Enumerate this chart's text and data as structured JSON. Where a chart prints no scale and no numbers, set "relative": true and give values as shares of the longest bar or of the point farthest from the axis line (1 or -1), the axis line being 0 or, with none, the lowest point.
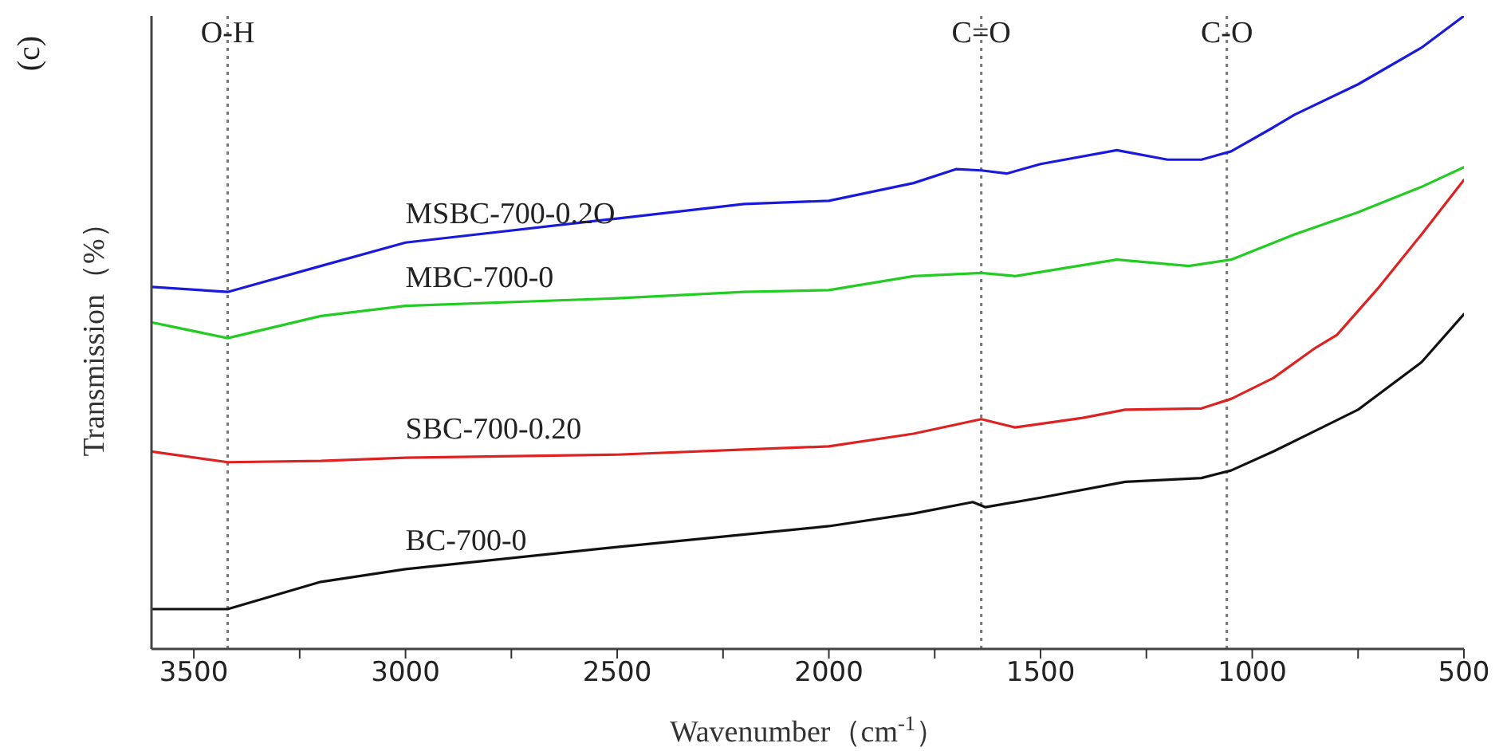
{
  "chart_data": {
    "type": "line",
    "relative": true,
    "xlabel": "Wavenumber（cm$^{-1}$）",
    "ylabel": "Transmission（%）",
    "annotations": [
      "(c)"
    ],
    "xlim": [
      3600,
      500
    ],
    "xticks": [
      3500,
      {
        "value": 3250,
        "label": null
      },
      3000,
      {
        "value": 2750,
        "label": null
      },
      2500,
      {
        "value": 2250,
        "label": null
      },
      2000,
      {
        "value": 1750,
        "label": null
      },
      1500,
      {
        "value": 1250,
        "label": null
      },
      1000,
      {
        "value": 750,
        "label": null
      },
      500
    ],
    "grid": false,
    "legend": false,
    "line_style": "solid",
    "marker": "none",
    "series": [
      {
        "name": "MSBC-700-0.2O",
        "color": "#1a1adc",
        "x": [
          3600,
          3420,
          3200,
          3000,
          2500,
          2200,
          2000,
          1800,
          1700,
          1640,
          1580,
          1500,
          1320,
          1200,
          1120,
          1050,
          950,
          900,
          750,
          600,
          500
        ],
        "values": [
          0.572,
          0.564,
          0.605,
          0.642,
          0.68,
          0.703,
          0.708,
          0.736,
          0.758,
          0.756,
          0.751,
          0.766,
          0.788,
          0.773,
          0.773,
          0.786,
          0.824,
          0.844,
          0.892,
          0.95,
          1
        ]
      },
      {
        "name": "MBC-700-0",
        "color": "#22cc22",
        "x": [
          3600,
          3420,
          3200,
          3000,
          2500,
          2200,
          2000,
          1800,
          1640,
          1560,
          1320,
          1150,
          1050,
          900,
          750,
          600,
          500
        ],
        "values": [
          0.516,
          0.491,
          0.526,
          0.542,
          0.554,
          0.564,
          0.567,
          0.589,
          0.594,
          0.589,
          0.615,
          0.605,
          0.615,
          0.655,
          0.69,
          0.73,
          0.761
        ]
      },
      {
        "name": "SBC-700-0.20",
        "color": "#dd2222",
        "x": [
          3600,
          3420,
          3200,
          3000,
          2500,
          2200,
          2000,
          1800,
          1640,
          1560,
          1400,
          1300,
          1120,
          1050,
          950,
          850,
          800,
          700,
          600,
          500
        ],
        "values": [
          0.312,
          0.295,
          0.297,
          0.302,
          0.307,
          0.315,
          0.32,
          0.34,
          0.363,
          0.35,
          0.365,
          0.378,
          0.38,
          0.395,
          0.428,
          0.476,
          0.496,
          0.572,
          0.655,
          0.741
        ]
      },
      {
        "name": "BC-700-0",
        "color": "#111111",
        "x": [
          3600,
          3420,
          3200,
          3000,
          2500,
          2000,
          1800,
          1660,
          1630,
          1500,
          1300,
          1120,
          1050,
          950,
          850,
          750,
          600,
          500
        ],
        "values": [
          0.063,
          0.063,
          0.106,
          0.126,
          0.161,
          0.194,
          0.214,
          0.232,
          0.224,
          0.239,
          0.264,
          0.27,
          0.282,
          0.312,
          0.345,
          0.378,
          0.453,
          0.529
        ]
      }
    ],
    "ref_lines": [
      {
        "axis": "x",
        "value": 3420,
        "label": "O-H",
        "line_style": "dotted",
        "color": "#777777"
      },
      {
        "axis": "x",
        "value": 1640,
        "label": "C=O",
        "line_style": "dotted",
        "color": "#777777"
      },
      {
        "axis": "x",
        "value": 1060,
        "label": "C-O",
        "line_style": "dotted",
        "color": "#777777"
      }
    ]
  }
}
